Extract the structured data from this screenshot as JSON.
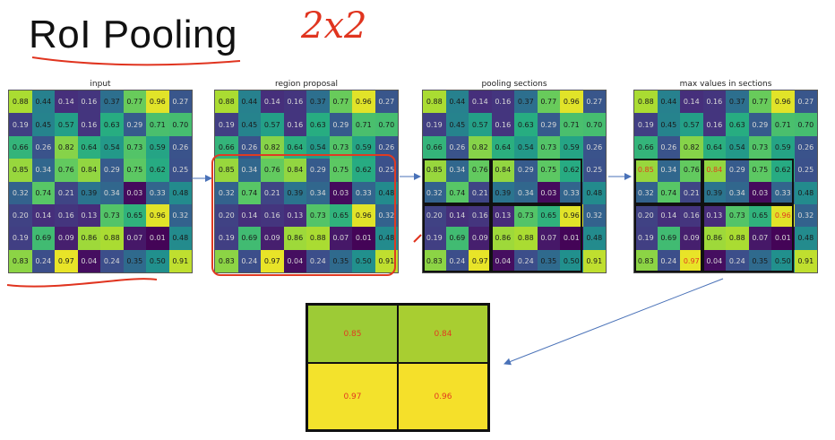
{
  "title": "RoI Pooling",
  "annotation": "2x2",
  "colors": {
    "grid_line": "#555555",
    "max_value_text": "#e23b1f",
    "annotation": "#e0341f",
    "arrow": "#4a72b8"
  },
  "values": [
    [
      "0.88",
      "0.44",
      "0.14",
      "0.16",
      "0.37",
      "0.77",
      "0.96",
      "0.27"
    ],
    [
      "0.19",
      "0.45",
      "0.57",
      "0.16",
      "0.63",
      "0.29",
      "0.71",
      "0.70"
    ],
    [
      "0.66",
      "0.26",
      "0.82",
      "0.64",
      "0.54",
      "0.73",
      "0.59",
      "0.26"
    ],
    [
      "0.85",
      "0.34",
      "0.76",
      "0.84",
      "0.29",
      "0.75",
      "0.62",
      "0.25"
    ],
    [
      "0.32",
      "0.74",
      "0.21",
      "0.39",
      "0.34",
      "0.03",
      "0.33",
      "0.48"
    ],
    [
      "0.20",
      "0.14",
      "0.16",
      "0.13",
      "0.73",
      "0.65",
      "0.96",
      "0.32"
    ],
    [
      "0.19",
      "0.69",
      "0.09",
      "0.86",
      "0.88",
      "0.07",
      "0.01",
      "0.48"
    ],
    [
      "0.83",
      "0.24",
      "0.97",
      "0.04",
      "0.24",
      "0.35",
      "0.50",
      "0.91"
    ]
  ],
  "panels": [
    {
      "title": "input"
    },
    {
      "title": "region proposal"
    },
    {
      "title": "pooling sections"
    },
    {
      "title": "max values in sections"
    }
  ],
  "output": [
    "0.85",
    "0.84",
    "0.97",
    "0.96"
  ],
  "output_colors": [
    "#9dcb36",
    "#a8ce31",
    "#f3e22c",
    "#f5e02a"
  ],
  "max_cells": [
    [
      3,
      0
    ],
    [
      3,
      3
    ],
    [
      5,
      6
    ],
    [
      7,
      2
    ]
  ]
}
